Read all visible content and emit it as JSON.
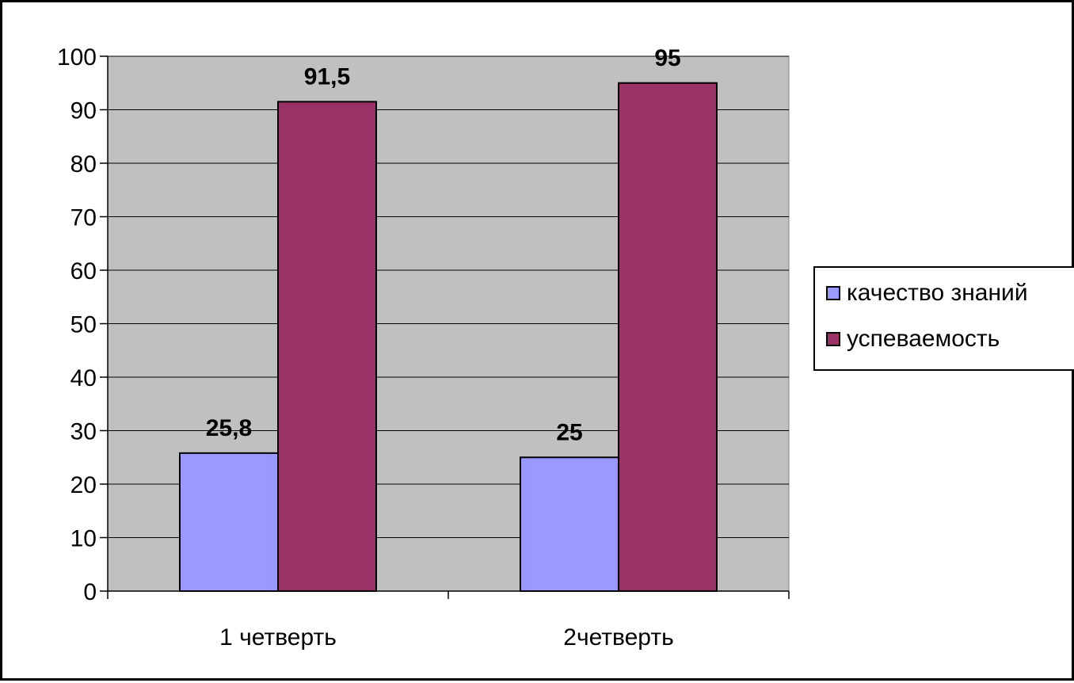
{
  "chart_data": {
    "type": "bar",
    "categories": [
      "1 четверть",
      "2четверть"
    ],
    "series": [
      {
        "name": "качество знаний",
        "values": [
          25.8,
          25
        ],
        "labels": [
          "25,8",
          "25"
        ],
        "color": "#9999ff"
      },
      {
        "name": "успеваемость",
        "values": [
          91.5,
          95
        ],
        "labels": [
          "91,5",
          "95"
        ],
        "color": "#993366"
      }
    ],
    "yticks": [
      "0",
      "10",
      "20",
      "30",
      "40",
      "50",
      "60",
      "70",
      "80",
      "90",
      "100"
    ],
    "ylim": [
      0,
      100
    ],
    "grid": true,
    "plot_background": "#c0c0c0",
    "legend_position": "right"
  }
}
